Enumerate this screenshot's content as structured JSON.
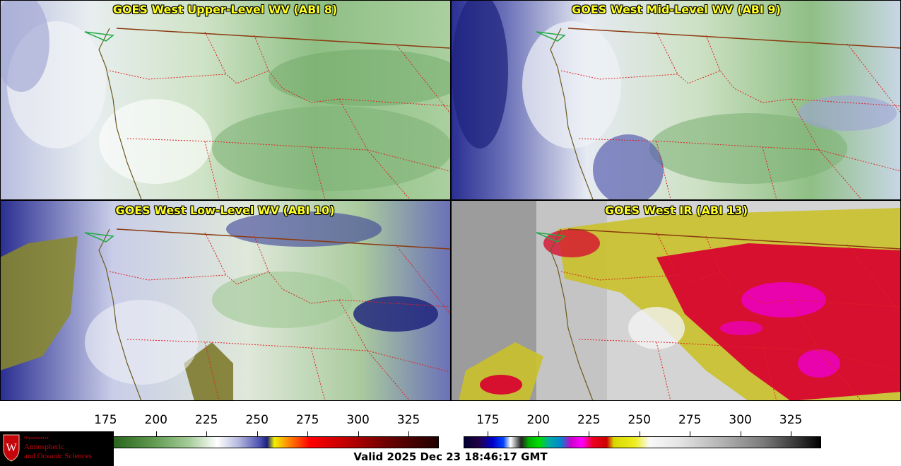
{
  "panels": [
    {
      "title": "GOES West Upper-Level WV (ABI 8)",
      "palette": "wv-upper"
    },
    {
      "title": "GOES West Mid-Level WV (ABI 9)",
      "palette": "wv-mid"
    },
    {
      "title": "GOES West Low-Level WV (ABI 10)",
      "palette": "wv-low"
    },
    {
      "title": "GOES West IR (ABI 13)",
      "palette": "ir"
    }
  ],
  "colorbars": [
    {
      "name": "water-vapor",
      "ticks": [
        "175",
        "200",
        "225",
        "250",
        "275",
        "300",
        "325"
      ],
      "range": [
        163,
        340
      ]
    },
    {
      "name": "infrared",
      "ticks": [
        "175",
        "200",
        "225",
        "250",
        "275",
        "300",
        "325"
      ],
      "range": [
        163,
        340
      ]
    }
  ],
  "valid_time": "Valid 2025 Dec 23 18:46:17 GMT",
  "logo": {
    "dept": "Department of",
    "line1": "Atmospheric",
    "line2": "and Oceanic Sciences"
  },
  "colors": {
    "state_border": "#dd2222",
    "coastline": "#6b5a1e",
    "title_text": "#ffff22",
    "logo_red": "#c5050c"
  }
}
